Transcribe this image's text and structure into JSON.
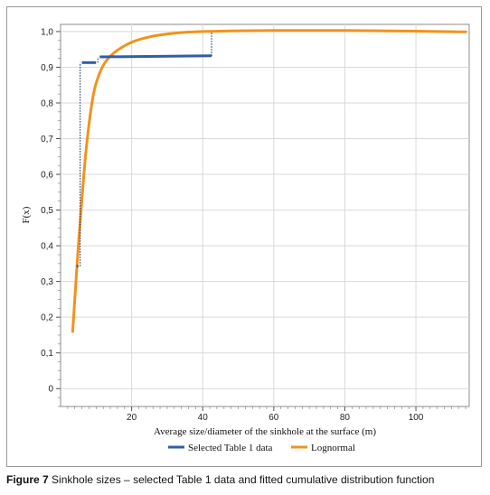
{
  "chart_data": {
    "type": "line",
    "title": "",
    "xlabel": "Average size/diameter of the sinkhole at the surface (m)",
    "ylabel": "F(x)",
    "xlim": [
      0,
      115
    ],
    "ylim": [
      -0.05,
      1.02
    ],
    "x_ticks": [
      20,
      40,
      60,
      80,
      100
    ],
    "x_tick_labels": [
      "20",
      "40",
      "60",
      "80",
      "100"
    ],
    "y_ticks": [
      0,
      0.1,
      0.2,
      0.3,
      0.4,
      0.5,
      0.6,
      0.7,
      0.8,
      0.9,
      1.0
    ],
    "y_tick_labels": [
      "0",
      "0,1",
      "0,2",
      "0,3",
      "0,4",
      "0,5",
      "0,6",
      "0,7",
      "0,8",
      "0,9",
      "1,0"
    ],
    "grid": true,
    "legend_position": "bottom",
    "series": [
      {
        "name": "Selected Table 1 data",
        "color": "#2f5ea8",
        "style": "step",
        "points": [
          [
            4.5,
            0.343
          ],
          [
            5.0,
            0.343
          ],
          [
            6.0,
            0.913
          ],
          [
            10.0,
            0.913
          ],
          [
            11.0,
            0.929
          ],
          [
            42.5,
            0.932
          ]
        ]
      },
      {
        "name": "Lognormal",
        "color": "#f2921c",
        "style": "smooth",
        "points": [
          [
            3.4,
            0.16
          ],
          [
            4.0,
            0.25
          ],
          [
            5.0,
            0.4
          ],
          [
            6.0,
            0.53
          ],
          [
            7.0,
            0.65
          ],
          [
            8.0,
            0.74
          ],
          [
            9.0,
            0.81
          ],
          [
            10.0,
            0.855
          ],
          [
            12.0,
            0.905
          ],
          [
            15.0,
            0.94
          ],
          [
            20.0,
            0.97
          ],
          [
            25.0,
            0.985
          ],
          [
            30.0,
            0.993
          ],
          [
            35.0,
            0.998
          ],
          [
            40.0,
            1.0
          ],
          [
            50.0,
            1.002
          ],
          [
            60.0,
            1.003
          ],
          [
            70.0,
            1.003
          ],
          [
            80.0,
            1.003
          ],
          [
            90.0,
            1.002
          ],
          [
            100.0,
            1.001
          ],
          [
            114.0,
            0.999
          ]
        ]
      }
    ]
  },
  "caption": {
    "label": "Figure 7",
    "text": " Sinkhole sizes – selected Table 1 data and fitted cumulative distribution function"
  }
}
